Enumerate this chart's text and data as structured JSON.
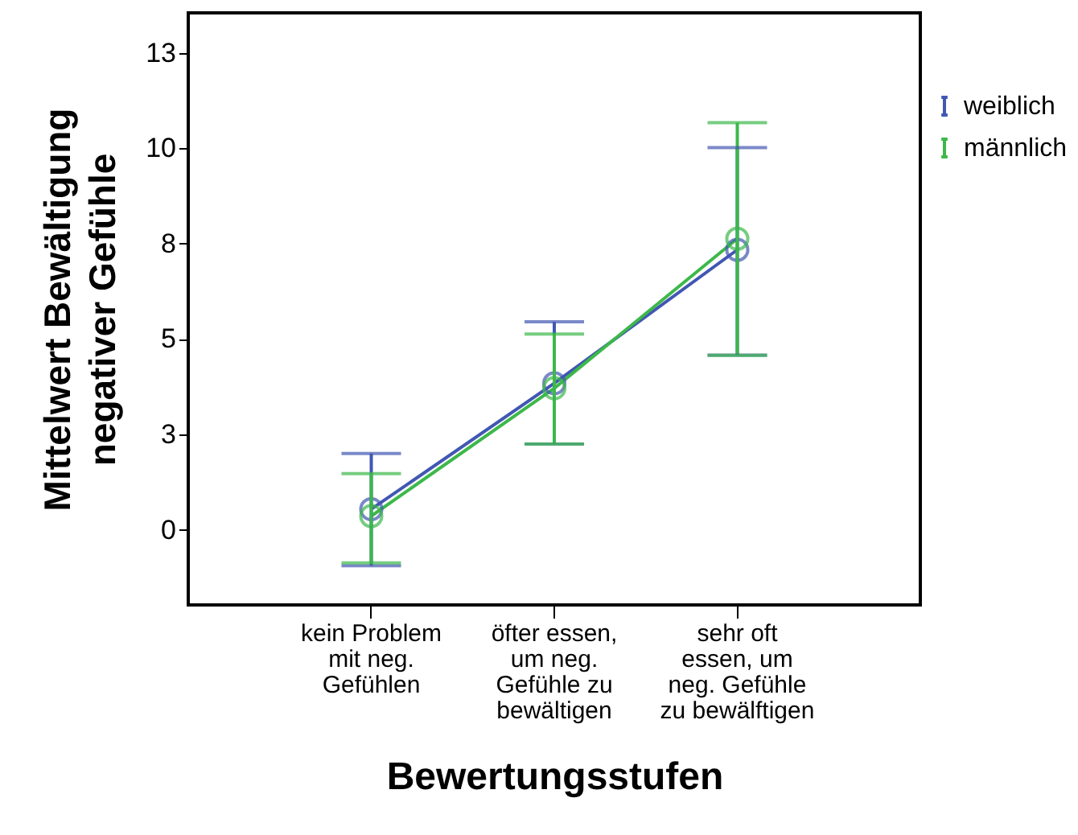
{
  "chart_data": {
    "type": "line",
    "xlabel": "Bewertungsstufen",
    "ylabel": "Mittelwert Bewältigung\nnegativer Gefühle",
    "categories": [
      "kein Problem\nmit neg.\nGefühlen",
      "öfter essen,\num neg.\nGefühle zu\nbewältigen",
      "sehr oft\nessen, um\nneg. Gefühle\nzu bewälftigen"
    ],
    "series": [
      {
        "name": "weiblich",
        "color": "#4157b2",
        "values": [
          0.54,
          3.84,
          7.34
        ],
        "errors": [
          [
            -0.94,
            2.0
          ],
          [
            2.25,
            5.45
          ],
          [
            4.58,
            10.02
          ]
        ]
      },
      {
        "name": "männlich",
        "color": "#3cb84a",
        "values": [
          0.36,
          3.71,
          7.63
        ],
        "errors": [
          [
            -0.87,
            1.47
          ],
          [
            2.25,
            5.13
          ],
          [
            4.57,
            10.67
          ]
        ]
      }
    ],
    "ylim": [
      -1.97,
      13.55
    ],
    "yticks": [
      0,
      {
        "value": 2.5,
        "label": "3"
      },
      5,
      {
        "value": 7.5,
        "label": "8"
      },
      10,
      {
        "value": 12.5,
        "label": "13"
      }
    ],
    "marker": "circle",
    "grid": false,
    "legend": "top right"
  }
}
